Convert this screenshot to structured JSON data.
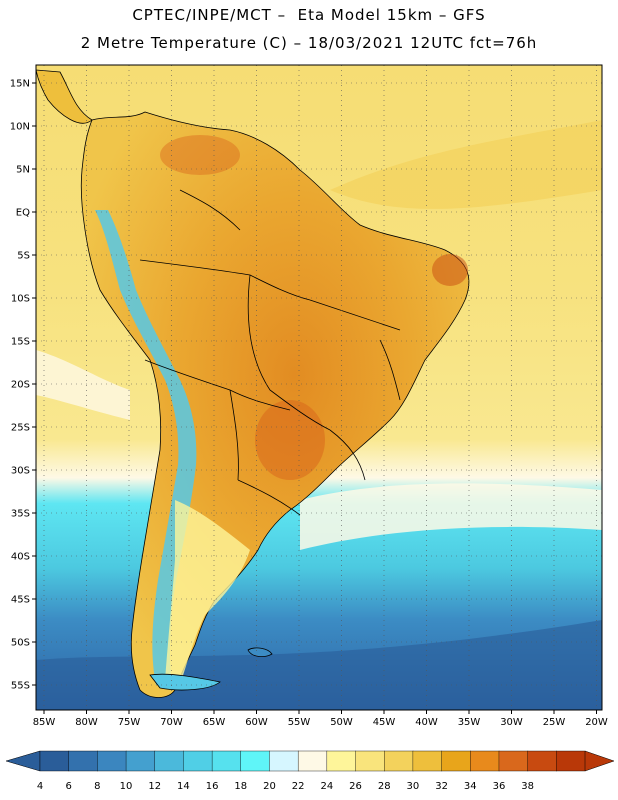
{
  "header": {
    "title_line1": "CPTEC/INPE/MCT –  Eta Model 15km – GFS",
    "title_line2": "2 Metre Temperature (C) – 18/03/2021 12UTC fct=76h"
  },
  "map": {
    "lat_labels": [
      "15N",
      "10N",
      "5N",
      "EQ",
      "5S",
      "10S",
      "15S",
      "20S",
      "25S",
      "30S",
      "35S",
      "40S",
      "45S",
      "50S",
      "55S"
    ],
    "lon_labels": [
      "85W",
      "80W",
      "75W",
      "70W",
      "65W",
      "60W",
      "55W",
      "50W",
      "45W",
      "40W",
      "35W",
      "30W",
      "25W",
      "20W"
    ],
    "gridlines": true
  },
  "legend": {
    "ticks": [
      "4",
      "6",
      "8",
      "10",
      "12",
      "14",
      "16",
      "18",
      "20",
      "22",
      "24",
      "26",
      "28",
      "30",
      "32",
      "34",
      "36",
      "38"
    ],
    "colors": [
      "#2a5d99",
      "#3371ad",
      "#3b86bf",
      "#44a0cf",
      "#4bb9db",
      "#50cfe6",
      "#56e1ee",
      "#5ff5f8",
      "#d6f6ff",
      "#fef9e6",
      "#fef59a",
      "#f9e47c",
      "#f3d25c",
      "#eebf3c",
      "#e8a51b",
      "#e88a1c",
      "#d9681c",
      "#c84a10",
      "#b93808"
    ],
    "low_arrow_color": "#2a5d99",
    "high_arrow_color": "#b93808"
  },
  "palette": {
    "ocean_south_deep": "#2d63a3",
    "ocean_south_mid": "#3c8cc4",
    "ocean_cyan": "#5ee6f2",
    "ocean_pale": "#fef9e6",
    "ocean_warm": "#f6dd74",
    "land_warm": "#eebf3c",
    "land_hot": "#e39224",
    "andes_cold": "#56c8e6",
    "border": "#000000"
  }
}
